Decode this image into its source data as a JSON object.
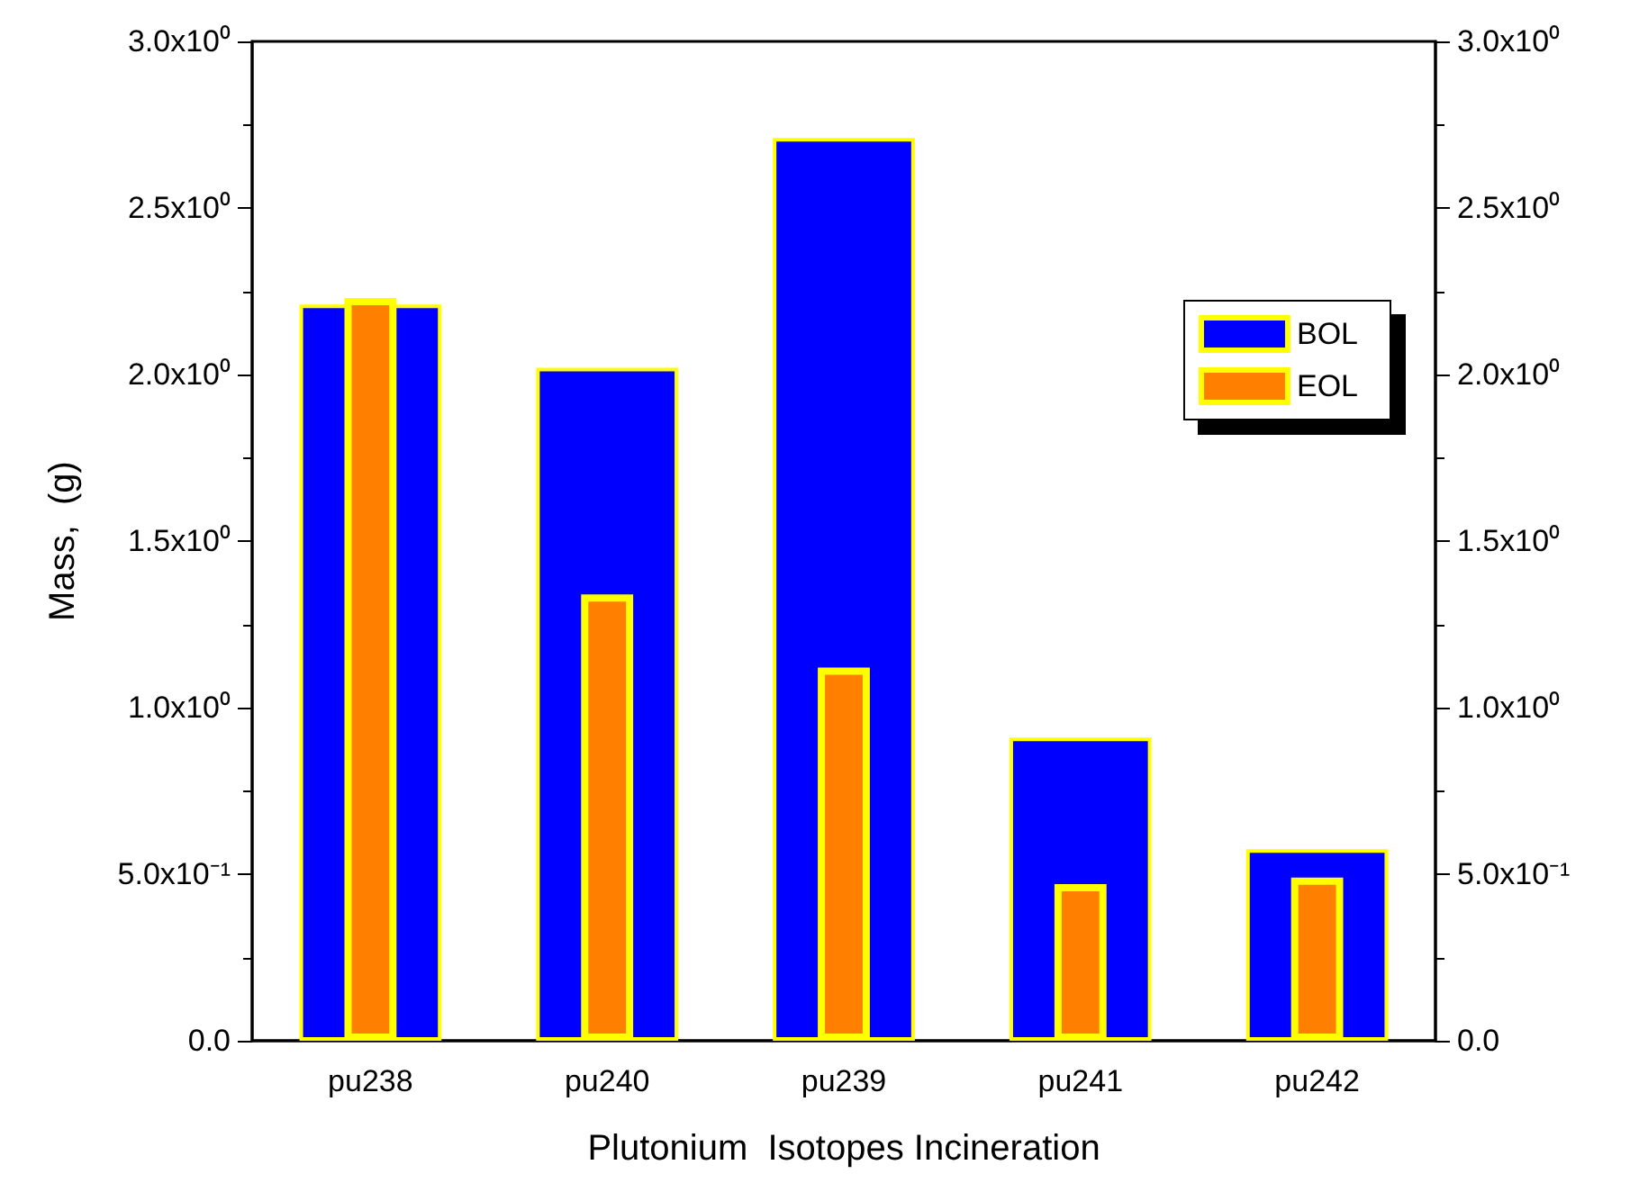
{
  "chart_data": {
    "type": "bar",
    "xlabel": "Plutonium  Isotopes Incineration",
    "ylabel": "Mass,  (g)",
    "categories": [
      "pu238",
      "pu240",
      "pu239",
      "pu241",
      "pu242"
    ],
    "series": [
      {
        "name": "BOL",
        "color": "#0000ff",
        "values": [
          2.21,
          2.02,
          2.71,
          0.91,
          0.575
        ]
      },
      {
        "name": "EOL",
        "color": "#ff8000",
        "values": [
          2.23,
          1.34,
          1.12,
          0.47,
          0.49
        ]
      }
    ],
    "ylim": [
      0,
      3
    ],
    "yticks": [
      {
        "value": 0,
        "label": "0.0"
      },
      {
        "value": 0.5,
        "label": "5.0x10⁻¹"
      },
      {
        "value": 1,
        "label": "1.0x10⁰"
      },
      {
        "value": 1.5,
        "label": "1.5x10⁰"
      },
      {
        "value": 2,
        "label": "2.0x10⁰"
      },
      {
        "value": 2.5,
        "label": "2.5x10⁰"
      },
      {
        "value": 3,
        "label": "3.0x10⁰"
      }
    ],
    "y2lim": [
      0,
      3
    ],
    "y2ticks": [
      {
        "value": 0,
        "label": "0.0"
      },
      {
        "value": 0.5,
        "label": "5.0x10⁻¹"
      },
      {
        "value": 1,
        "label": "1.0x10⁰"
      },
      {
        "value": 1.5,
        "label": "1.5x10⁰"
      },
      {
        "value": 2,
        "label": "2.0x10⁰"
      },
      {
        "value": 2.5,
        "label": "2.5x10⁰"
      },
      {
        "value": 3,
        "label": "3.0x10⁰"
      }
    ],
    "grid": false,
    "legend": "top right"
  }
}
